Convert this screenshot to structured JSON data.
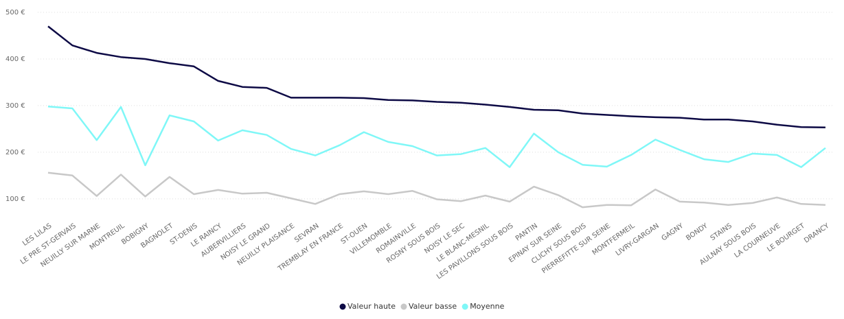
{
  "chart_data": {
    "type": "line",
    "categories": [
      "LES LILAS",
      "LE PRE ST-GERVAIS",
      "NEUILLY SUR MARNE",
      "MONTREUIL",
      "BOBIGNY",
      "BAGNOLET",
      "ST-DENIS",
      "LE RAINCY",
      "AUBERVILLIERS",
      "NOISY LE GRAND",
      "NEUILLY PLAISANCE",
      "SEVRAN",
      "TREMBLAY EN FRANCE",
      "ST-OUEN",
      "VILLEMOMBLE",
      "ROMAINVILLE",
      "ROSNY SOUS BOIS",
      "NOISY LE SEC",
      "LE BLANC-MESNIL",
      "LES PAVILLONS SOUS BOIS",
      "PANTIN",
      "EPINAY SUR SEINE",
      "CLICHY SOUS BOIS",
      "PIERREFITTE SUR SEINE",
      "MONTFERMEIL",
      "LIVRY-GARGAN",
      "GAGNY",
      "BONDY",
      "STAINS",
      "AULNAY SOUS BOIS",
      "LA COURNEUVE",
      "LE BOURGET",
      "DRANCY"
    ],
    "series": [
      {
        "name": "Valeur haute",
        "color": "#0d0a45",
        "values": [
          470,
          429,
          413,
          404,
          400,
          391,
          384,
          353,
          340,
          338,
          317,
          317,
          317,
          316,
          312,
          311,
          308,
          306,
          302,
          297,
          291,
          290,
          283,
          280,
          277,
          275,
          274,
          270,
          270,
          266,
          259,
          254,
          253
        ]
      },
      {
        "name": "Valeur basse",
        "color": "#c8c8c8",
        "values": [
          156,
          150,
          106,
          152,
          105,
          147,
          110,
          119,
          111,
          113,
          101,
          89,
          110,
          116,
          110,
          117,
          99,
          95,
          107,
          94,
          126,
          108,
          82,
          87,
          86,
          120,
          94,
          92,
          87,
          91,
          103,
          89,
          87
        ]
      },
      {
        "name": "Moyenne",
        "color": "#7ff7f7",
        "values": [
          298,
          294,
          226,
          297,
          172,
          279,
          266,
          225,
          247,
          237,
          207,
          193,
          215,
          243,
          222,
          213,
          193,
          196,
          209,
          168,
          240,
          200,
          173,
          169,
          194,
          227,
          205,
          185,
          179,
          197,
          194,
          168,
          209
        ]
      }
    ],
    "ylim": [
      60,
      500
    ],
    "yticks": [
      {
        "value": 100,
        "label": "100 €"
      },
      {
        "value": 200,
        "label": "200 €"
      },
      {
        "value": 300,
        "label": "300 €"
      },
      {
        "value": 400,
        "label": "400 €"
      },
      {
        "value": 500,
        "label": "500 €"
      }
    ],
    "grid": true,
    "legend": "bottom"
  }
}
